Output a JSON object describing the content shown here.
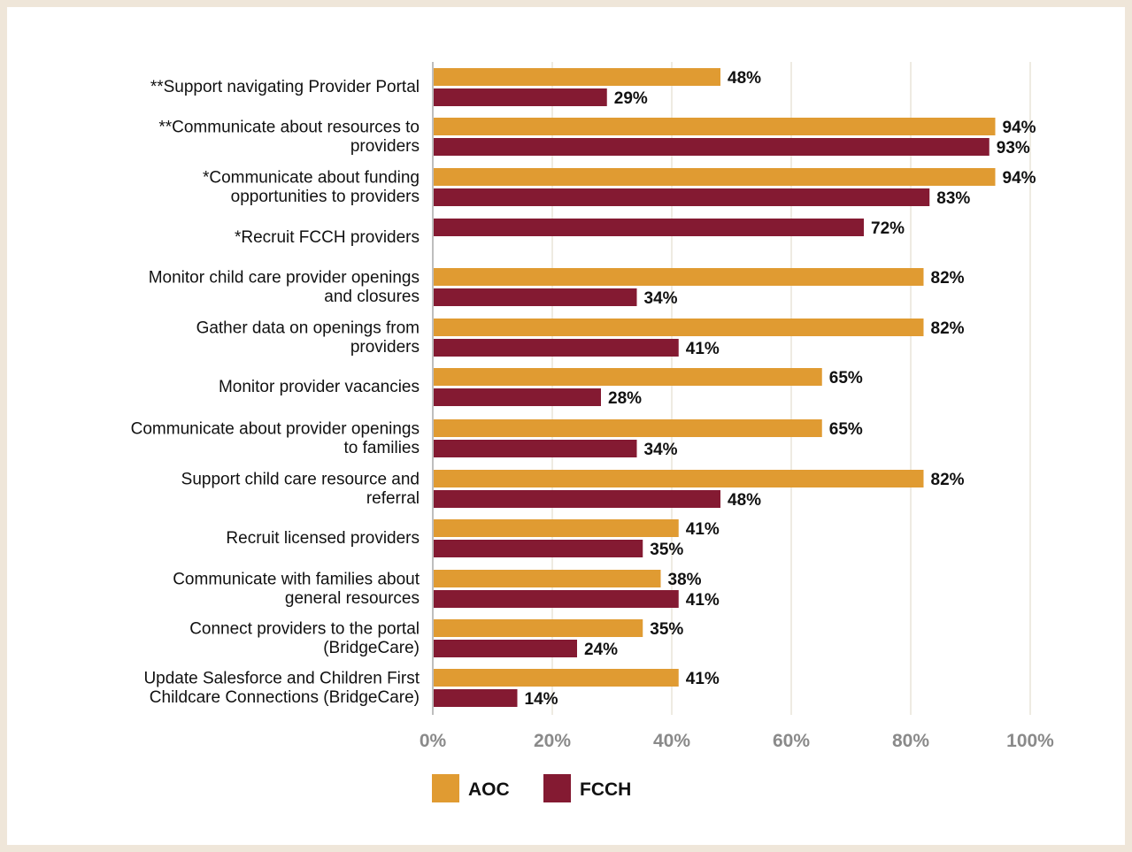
{
  "chart_data": {
    "type": "bar",
    "orientation": "horizontal",
    "categories": [
      [
        "**Support navigating Provider Portal"
      ],
      [
        "**Communicate about resources to",
        "providers"
      ],
      [
        "*Communicate about funding",
        "opportunities to providers"
      ],
      [
        "*Recruit FCCH providers"
      ],
      [
        "Monitor child care provider openings",
        "and closures"
      ],
      [
        "Gather data on openings from",
        "providers"
      ],
      [
        "Monitor provider vacancies"
      ],
      [
        "Communicate about provider openings",
        "to families"
      ],
      [
        "Support child care resource and",
        "referral"
      ],
      [
        "Recruit licensed providers"
      ],
      [
        "Communicate with families about",
        "general resources"
      ],
      [
        "Connect providers to the portal",
        "(BridgeCare)"
      ],
      [
        "Update Salesforce and Children First",
        "Childcare Connections (BridgeCare)"
      ]
    ],
    "series": [
      {
        "name": "AOC",
        "color": "#e09b32",
        "values": [
          48,
          94,
          94,
          null,
          82,
          82,
          65,
          65,
          82,
          41,
          38,
          35,
          41
        ]
      },
      {
        "name": "FCCH",
        "color": "#841a32",
        "values": [
          29,
          93,
          83,
          72,
          34,
          41,
          28,
          34,
          48,
          35,
          41,
          24,
          14
        ]
      }
    ],
    "xlim": [
      0,
      100
    ],
    "xticks": [
      "0%",
      "20%",
      "40%",
      "60%",
      "80%",
      "100%"
    ],
    "grid": true,
    "legend": "bottom",
    "value_suffix": "%"
  }
}
